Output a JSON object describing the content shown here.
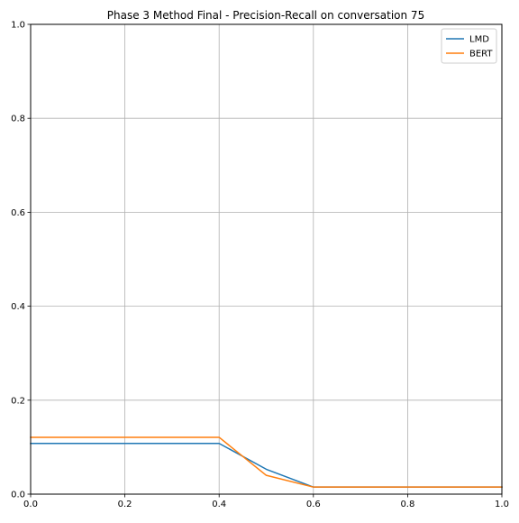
{
  "chart_data": {
    "type": "line",
    "title": "Phase 3 Method Final - Precision-Recall on conversation 75",
    "xlabel": "",
    "ylabel": "",
    "xlim": [
      0.0,
      1.0
    ],
    "ylim": [
      0.0,
      1.0
    ],
    "x_ticks": [
      "0.0",
      "0.2",
      "0.4",
      "0.6",
      "0.8",
      "1.0"
    ],
    "y_ticks": [
      "0.0",
      "0.2",
      "0.4",
      "0.6",
      "0.8",
      "1.0"
    ],
    "grid": true,
    "legend_position": "top-right",
    "series": [
      {
        "name": "LMD",
        "color": "#1f77b4",
        "x": [
          0.0,
          0.1,
          0.2,
          0.3,
          0.4,
          0.5,
          0.6,
          0.7,
          0.8,
          0.9,
          1.0
        ],
        "y": [
          0.108,
          0.108,
          0.108,
          0.108,
          0.108,
          0.053,
          0.015,
          0.015,
          0.015,
          0.015,
          0.015
        ]
      },
      {
        "name": "BERT",
        "color": "#ff7f0e",
        "x": [
          0.0,
          0.1,
          0.2,
          0.3,
          0.4,
          0.5,
          0.6,
          0.7,
          0.8,
          0.9,
          1.0
        ],
        "y": [
          0.121,
          0.121,
          0.121,
          0.121,
          0.121,
          0.04,
          0.015,
          0.015,
          0.015,
          0.015,
          0.015
        ]
      }
    ]
  }
}
